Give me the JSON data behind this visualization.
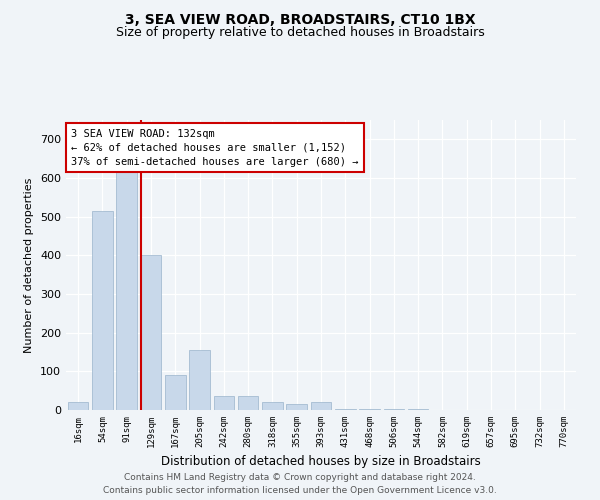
{
  "title": "3, SEA VIEW ROAD, BROADSTAIRS, CT10 1BX",
  "subtitle": "Size of property relative to detached houses in Broadstairs",
  "xlabel": "Distribution of detached houses by size in Broadstairs",
  "ylabel": "Number of detached properties",
  "bar_color": "#c8d8ea",
  "bar_edge_color": "#9ab4cc",
  "categories": [
    "16sqm",
    "54sqm",
    "91sqm",
    "129sqm",
    "167sqm",
    "205sqm",
    "242sqm",
    "280sqm",
    "318sqm",
    "355sqm",
    "393sqm",
    "431sqm",
    "468sqm",
    "506sqm",
    "544sqm",
    "582sqm",
    "619sqm",
    "657sqm",
    "695sqm",
    "732sqm",
    "770sqm"
  ],
  "values": [
    20,
    515,
    635,
    400,
    90,
    155,
    35,
    35,
    20,
    15,
    20,
    2,
    2,
    2,
    2,
    0,
    0,
    0,
    0,
    0,
    0
  ],
  "ylim": [
    0,
    750
  ],
  "yticks": [
    0,
    100,
    200,
    300,
    400,
    500,
    600,
    700
  ],
  "property_bar_index": 3,
  "property_line_color": "#cc0000",
  "annotation_line1": "3 SEA VIEW ROAD: 132sqm",
  "annotation_line2": "← 62% of detached houses are smaller (1,152)",
  "annotation_line3": "37% of semi-detached houses are larger (680) →",
  "annotation_box_edgecolor": "#cc0000",
  "footer_text": "Contains HM Land Registry data © Crown copyright and database right 2024.\nContains public sector information licensed under the Open Government Licence v3.0.",
  "background_color": "#f0f4f8",
  "grid_color": "#ffffff",
  "title_fontsize": 10,
  "subtitle_fontsize": 9,
  "xlabel_fontsize": 8.5,
  "ylabel_fontsize": 8,
  "footer_fontsize": 6.5,
  "annotation_fontsize": 7.5,
  "tick_fontsize": 6.5
}
